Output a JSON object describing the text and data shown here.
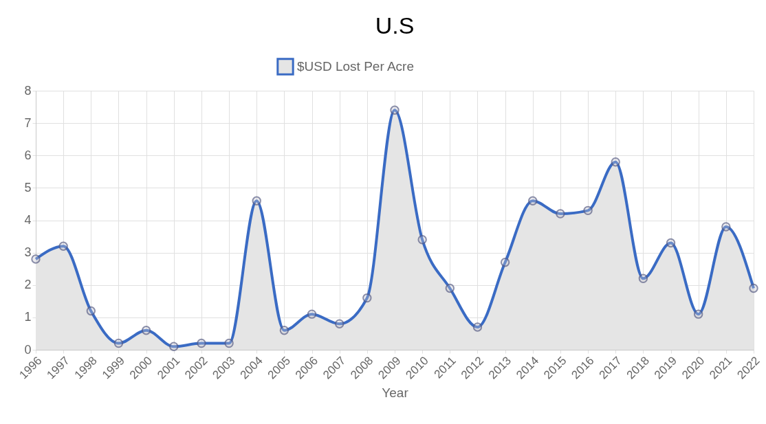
{
  "chart_data": {
    "type": "area",
    "title": "U.S",
    "xlabel": "Year",
    "categories": [
      "1996",
      "1997",
      "1998",
      "1999",
      "2000",
      "2001",
      "2002",
      "2003",
      "2004",
      "2005",
      "2006",
      "2007",
      "2008",
      "2009",
      "2010",
      "2011",
      "2012",
      "2013",
      "2014",
      "2015",
      "2016",
      "2017",
      "2018",
      "2019",
      "2020",
      "2021",
      "2022"
    ],
    "series": [
      {
        "name": "$USD Lost Per Acre",
        "color": "#3a6bc4",
        "values": [
          2.8,
          3.2,
          1.2,
          0.2,
          0.6,
          0.1,
          0.2,
          0.2,
          4.6,
          0.6,
          1.1,
          0.8,
          1.6,
          7.4,
          3.4,
          1.9,
          0.7,
          2.7,
          4.6,
          4.2,
          4.3,
          5.8,
          2.2,
          3.3,
          1.1,
          3.8,
          1.9
        ]
      }
    ],
    "ylim": [
      0,
      8
    ],
    "yticks": [
      0,
      1,
      2,
      3,
      4,
      5,
      6,
      7,
      8
    ],
    "grid": true,
    "legend": "top",
    "marker": "circle",
    "line_style": "solid"
  }
}
